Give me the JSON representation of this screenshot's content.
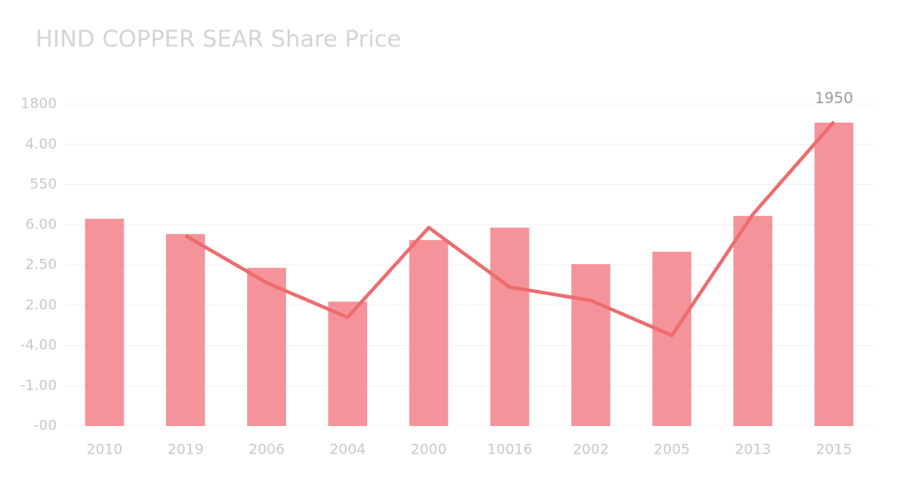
{
  "chart_data": {
    "type": "bar",
    "title": "HIND COPPER SEAR Share Price",
    "annotation": "1950",
    "categories": [
      "2010",
      "2019",
      "2006",
      "2004",
      "2000",
      "10016",
      "2002",
      "2005",
      "2013",
      "2015"
    ],
    "series": [
      {
        "type": "bar",
        "color": "#f4878f",
        "values": [
          5.15,
          4.77,
          3.93,
          3.09,
          4.62,
          4.93,
          4.02,
          4.33,
          5.22,
          7.54
        ]
      },
      {
        "type": "line",
        "color": "#ee6b6e",
        "values": [
          null,
          4.73,
          3.56,
          2.7,
          4.93,
          3.45,
          3.12,
          2.25,
          5.26,
          7.56
        ]
      }
    ],
    "ylim": [
      0,
      8
    ],
    "yticks": [
      {
        "value": 0,
        "label": "-00"
      },
      {
        "value": 1,
        "label": "-1.00"
      },
      {
        "value": 2,
        "label": "-4.00"
      },
      {
        "value": 3,
        "label": "2.00"
      },
      {
        "value": 4,
        "label": "2.50"
      },
      {
        "value": 5,
        "label": "6.00"
      },
      {
        "value": 6,
        "label": "550"
      },
      {
        "value": 7,
        "label": "4.00"
      },
      {
        "value": 8,
        "label": "1800"
      }
    ],
    "grid": true
  }
}
